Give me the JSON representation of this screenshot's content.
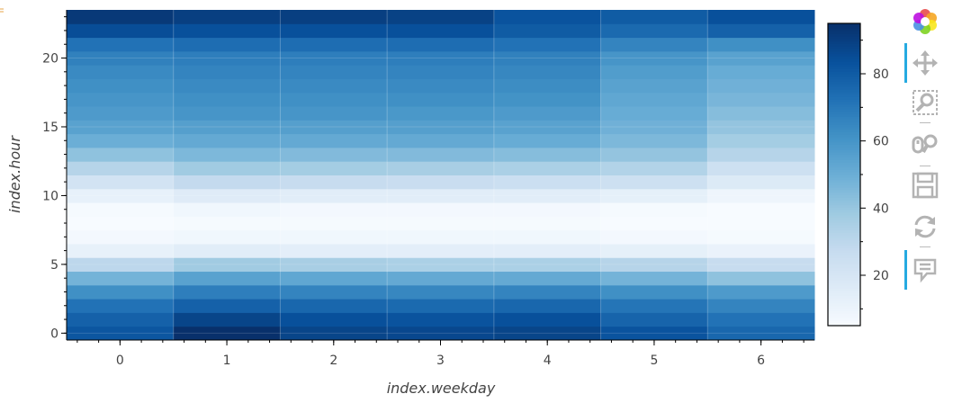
{
  "chart_data": {
    "type": "heatmap",
    "xlabel": "index.weekday",
    "ylabel": "index.hour",
    "x_categories": [
      0,
      1,
      2,
      3,
      4,
      5,
      6
    ],
    "y_categories": [
      0,
      1,
      2,
      3,
      4,
      5,
      6,
      7,
      8,
      9,
      10,
      11,
      12,
      13,
      14,
      15,
      16,
      17,
      18,
      19,
      20,
      21,
      22,
      23
    ],
    "x_ticks": [
      0,
      1,
      2,
      3,
      4,
      5,
      6
    ],
    "y_ticks": [
      0,
      5,
      10,
      15,
      20
    ],
    "xlim": [
      -0.5,
      6.5
    ],
    "ylim": [
      -0.5,
      23.5
    ],
    "colorbar": {
      "range": [
        5,
        95
      ],
      "ticks": [
        20,
        40,
        60,
        80
      ],
      "colormap": "Blues"
    },
    "grid": "on",
    "values": [
      [
        82,
        95,
        88,
        87,
        88,
        83,
        76
      ],
      [
        78,
        88,
        84,
        83,
        84,
        77,
        72
      ],
      [
        72,
        78,
        76,
        75,
        76,
        71,
        66
      ],
      [
        62,
        68,
        66,
        65,
        66,
        62,
        58
      ],
      [
        48,
        55,
        53,
        52,
        52,
        48,
        42
      ],
      [
        30,
        38,
        36,
        35,
        35,
        32,
        27
      ],
      [
        12,
        15,
        14,
        14,
        14,
        13,
        11
      ],
      [
        7,
        8,
        8,
        8,
        8,
        7,
        6
      ],
      [
        5,
        6,
        6,
        6,
        6,
        5,
        5
      ],
      [
        6,
        8,
        7,
        7,
        7,
        6,
        5
      ],
      [
        12,
        16,
        15,
        15,
        15,
        13,
        9
      ],
      [
        22,
        28,
        27,
        26,
        25,
        24,
        17
      ],
      [
        32,
        38,
        37,
        36,
        35,
        33,
        24
      ],
      [
        42,
        46,
        45,
        45,
        44,
        41,
        32
      ],
      [
        50,
        52,
        52,
        52,
        51,
        46,
        37
      ],
      [
        55,
        56,
        56,
        56,
        55,
        49,
        41
      ],
      [
        58,
        60,
        60,
        59,
        58,
        51,
        44
      ],
      [
        60,
        62,
        62,
        62,
        61,
        53,
        47
      ],
      [
        62,
        64,
        64,
        64,
        63,
        55,
        49
      ],
      [
        64,
        66,
        66,
        66,
        65,
        57,
        51
      ],
      [
        67,
        68,
        68,
        68,
        67,
        60,
        55
      ],
      [
        72,
        74,
        74,
        74,
        72,
        66,
        62
      ],
      [
        85,
        84,
        84,
        84,
        80,
        75,
        78
      ],
      [
        92,
        90,
        90,
        89,
        83,
        80,
        84
      ]
    ]
  },
  "colors": {
    "colormap_stops": [
      "#f7fbff",
      "#deebf7",
      "#c6dbef",
      "#9ecae1",
      "#6baed6",
      "#4292c6",
      "#2171b5",
      "#08519c",
      "#08306b"
    ],
    "tool_active": "#26aae1",
    "tool_icon": "#b3b3b3"
  },
  "toolbar": {
    "logo": "bokeh-logo-icon",
    "tools": [
      {
        "icon": "pan-icon",
        "active": true
      },
      {
        "icon": "box-zoom-icon",
        "active": false
      },
      {
        "icon": "wheel-zoom-icon",
        "active": false
      },
      {
        "icon": "save-icon",
        "active": false
      },
      {
        "icon": "reset-icon",
        "active": false
      },
      {
        "icon": "hover-icon",
        "active": true
      }
    ]
  }
}
